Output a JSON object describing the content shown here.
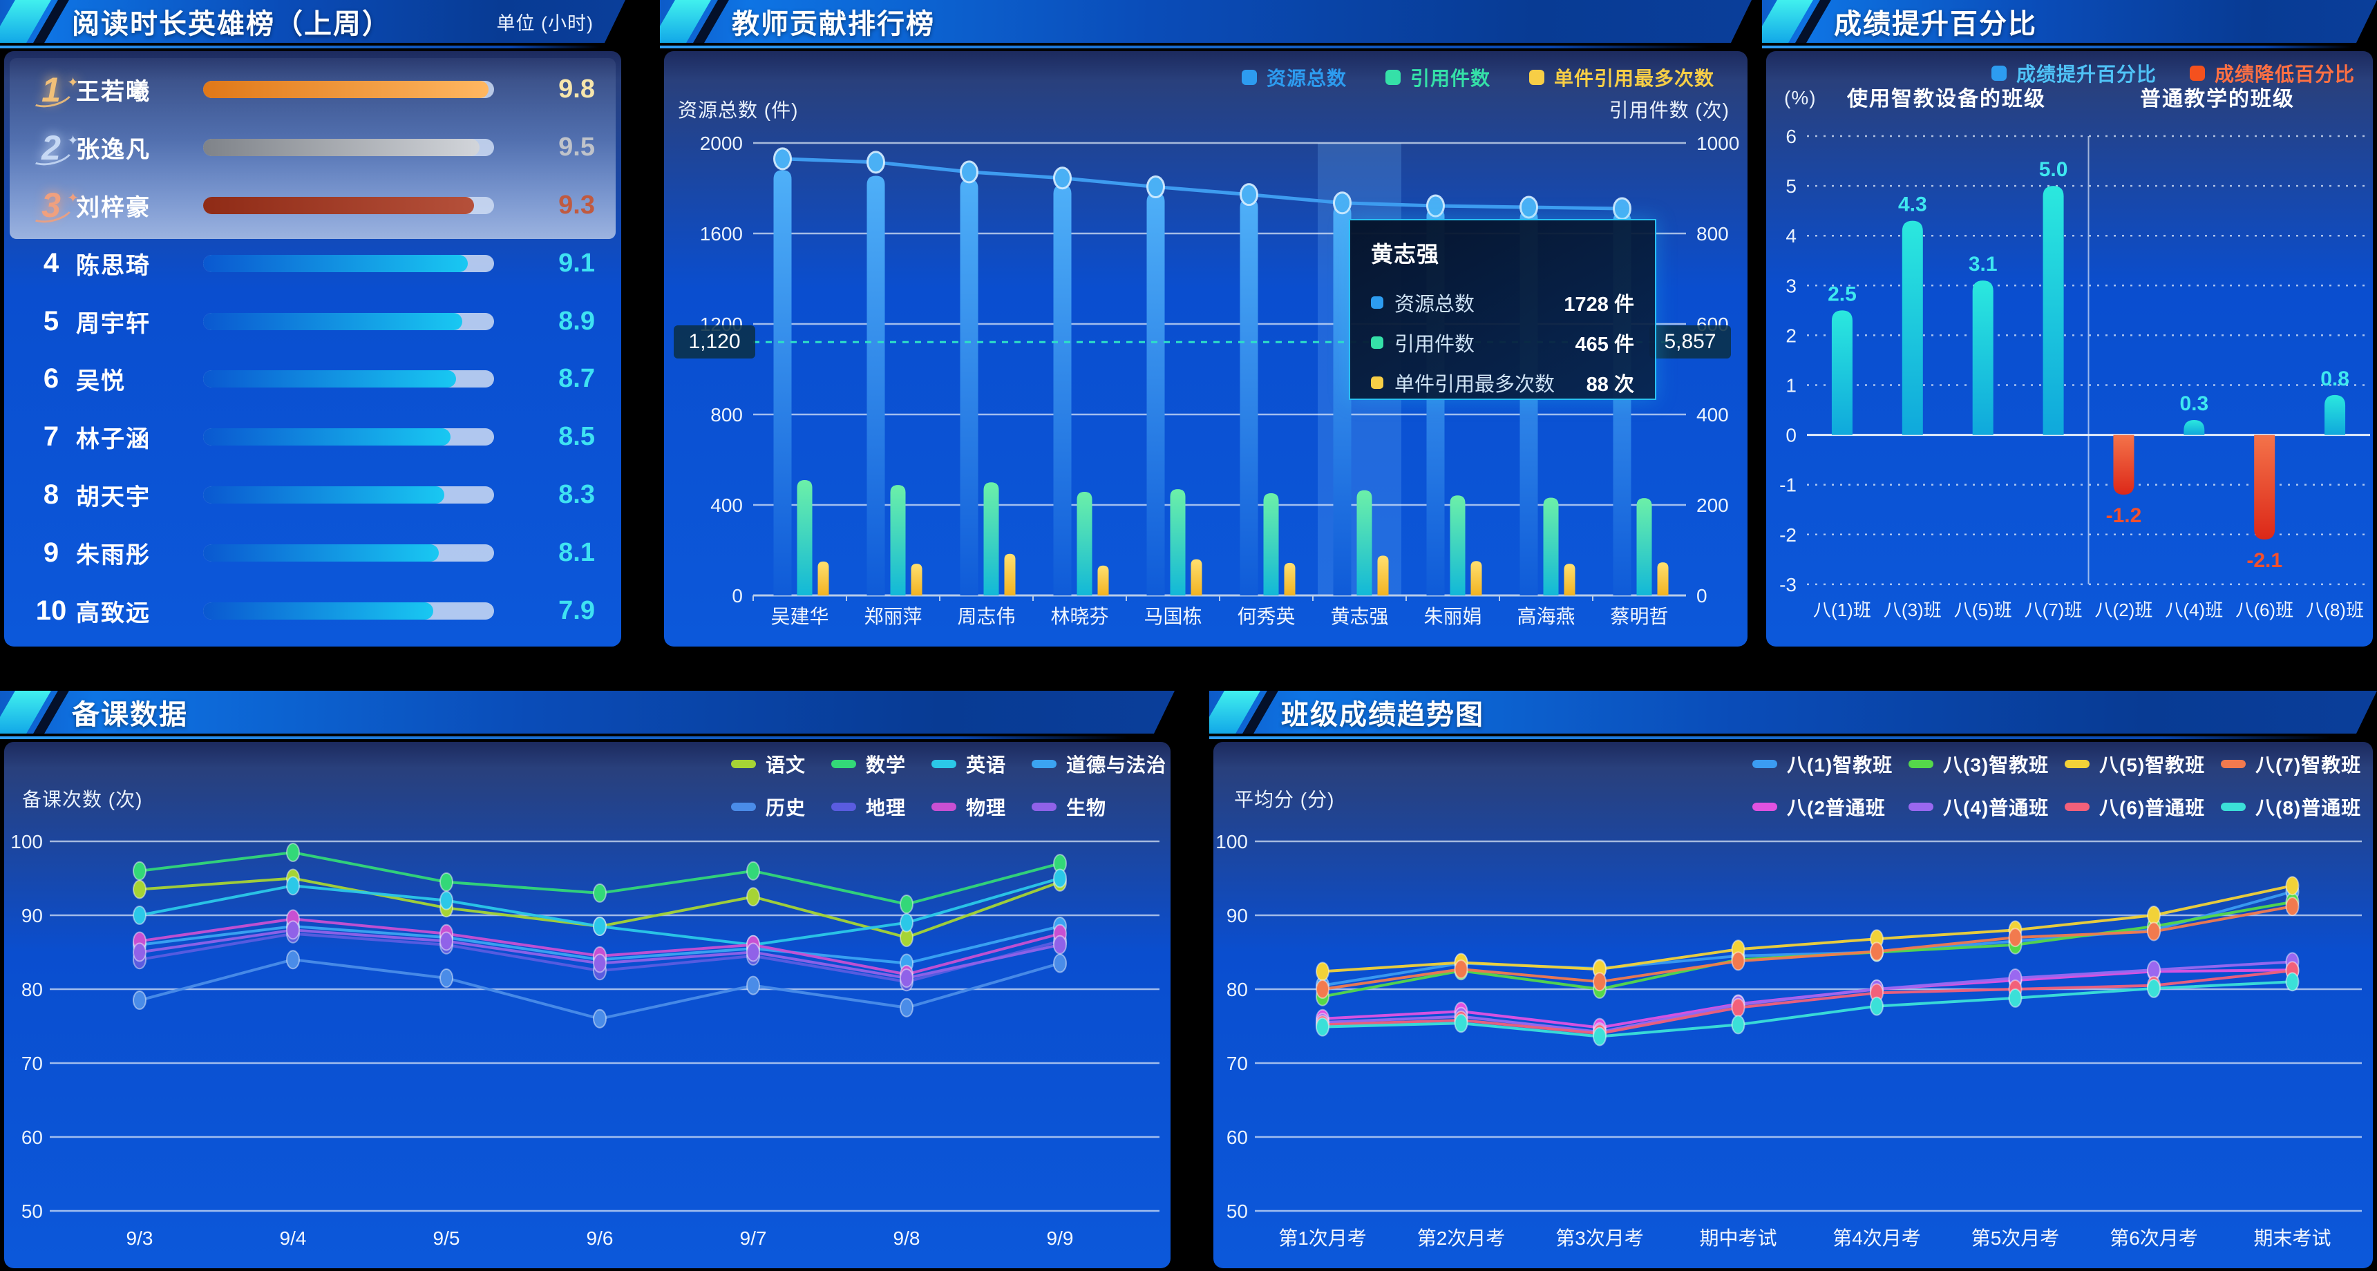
{
  "app": {
    "background": "#000000",
    "panel_blue": "#0b51d5",
    "header_gradient": [
      "#0e74e4",
      "#083b94"
    ],
    "accent_cyan": "#2fe0ee"
  },
  "panels": {
    "reading": {
      "title": "阅读时长英雄榜（上周）",
      "unit_label": "单位 (小时)"
    },
    "teacher": {
      "title": "教师贡献排行榜"
    },
    "improvement": {
      "title": "成绩提升百分比"
    },
    "prep": {
      "title": "备课数据"
    },
    "trend": {
      "title": "班级成绩趋势图"
    }
  },
  "chart_data": [
    {
      "id": "reading",
      "type": "bar",
      "title": "阅读时长英雄榜（上周）",
      "unit": "单位 (小时)",
      "xlim": [
        0,
        10
      ],
      "rows": [
        {
          "rank": 1,
          "name": "王若曦",
          "value": 9.8,
          "tier": "gold"
        },
        {
          "rank": 2,
          "name": "张逸凡",
          "value": 9.5,
          "tier": "silver"
        },
        {
          "rank": 3,
          "name": "刘梓豪",
          "value": 9.3,
          "tier": "bronze"
        },
        {
          "rank": 4,
          "name": "陈思琦",
          "value": 9.1,
          "tier": "normal"
        },
        {
          "rank": 5,
          "name": "周宇轩",
          "value": 8.9,
          "tier": "normal"
        },
        {
          "rank": 6,
          "name": "吴悦",
          "value": 8.7,
          "tier": "normal"
        },
        {
          "rank": 7,
          "name": "林子涵",
          "value": 8.5,
          "tier": "normal"
        },
        {
          "rank": 8,
          "name": "胡天宇",
          "value": 8.3,
          "tier": "normal"
        },
        {
          "rank": 9,
          "name": "朱雨彤",
          "value": 8.1,
          "tier": "normal"
        },
        {
          "rank": 10,
          "name": "高致远",
          "value": 7.9,
          "tier": "normal"
        }
      ],
      "tier_colors": {
        "gold": {
          "bar": [
            "#e07818",
            "#ffb761"
          ],
          "value": "#f7e6ac",
          "medal": "#f2c078"
        },
        "silver": {
          "bar": [
            "#7f8389",
            "#d2d5da"
          ],
          "value": "#bfc3ca",
          "medal": "#c6d8f4"
        },
        "bronze": {
          "bar": [
            "#8f2b16",
            "#b5503a"
          ],
          "value": "#c05a40",
          "medal": "#f0a07e"
        },
        "normal": {
          "bar": [
            "#0a58d0",
            "#19c8f2"
          ],
          "value": "#3fe2f2",
          "medal": "#ffffff"
        }
      }
    },
    {
      "id": "teacher",
      "type": "bar",
      "title": "教师贡献排行榜",
      "left_axis": {
        "name": "资源总数 (件)",
        "max": 2000,
        "ticks": [
          2000,
          1600,
          1200,
          800,
          400,
          0
        ]
      },
      "right_axis": {
        "name": "引用件数 (次)",
        "max": 1000,
        "ticks": [
          1000,
          800,
          600,
          400,
          200,
          0
        ]
      },
      "categories": [
        "吴建华",
        "郑丽萍",
        "周志伟",
        "林晓芬",
        "马国栋",
        "何秀英",
        "黄志强",
        "朱丽娟",
        "高海燕",
        "蔡明哲"
      ],
      "legend": [
        {
          "label": "资源总数",
          "color": "#2d9cf0"
        },
        {
          "label": "引用件数",
          "color": "#35e0a8"
        },
        {
          "label": "单件引用最多次数",
          "color": "#f7ce46"
        }
      ],
      "series": [
        {
          "name": "资源总数",
          "kind": "bar",
          "axis": "left",
          "colors": [
            "#4fb0f8",
            "#0f5bd8"
          ],
          "values": [
            1880,
            1855,
            1840,
            1815,
            1780,
            1755,
            1728,
            1715,
            1705,
            1695
          ]
        },
        {
          "name": "资源总数-趋势",
          "kind": "line",
          "axis": "left",
          "color": "#3e9cf0",
          "values": [
            1930,
            1915,
            1872,
            1845,
            1806,
            1772,
            1735,
            1722,
            1716,
            1710
          ]
        },
        {
          "name": "引用件数",
          "kind": "bar",
          "axis": "left",
          "colors": [
            "#6cf0a8",
            "#12b8d8"
          ],
          "values": [
            510,
            488,
            500,
            458,
            470,
            452,
            465,
            442,
            432,
            430
          ]
        },
        {
          "name": "单件引用最多次数",
          "kind": "bar",
          "axis": "right",
          "colors": [
            "#ffe070",
            "#f2b322"
          ],
          "values": [
            75,
            70,
            92,
            66,
            80,
            72,
            88,
            76,
            70,
            73
          ]
        }
      ],
      "highlight_category": "黄志强",
      "axis_pointer": {
        "left_label": "1,120",
        "right_label": "5,857",
        "left_value": 1120
      },
      "tooltip": {
        "title": "黄志强",
        "rows": [
          {
            "label": "资源总数",
            "value": "1728 件",
            "color": "#2d9cf0"
          },
          {
            "label": "引用件数",
            "value": "465 件",
            "color": "#35e0a8"
          },
          {
            "label": "单件引用最多次数",
            "value": "88 次",
            "color": "#f7ce46"
          }
        ]
      }
    },
    {
      "id": "improvement",
      "type": "bar",
      "title": "成绩提升百分比",
      "ylabel": "(%)",
      "yticks": [
        6,
        5,
        4,
        3,
        2,
        1,
        0,
        -1,
        -2,
        -3
      ],
      "legend": [
        {
          "label": "成绩提升百分比",
          "color": "#2d9cf0",
          "text_color": "#4fc3f7"
        },
        {
          "label": "成绩降低百分比",
          "color": "#f4511e",
          "text_color": "#ff7043"
        }
      ],
      "groups": [
        {
          "label": "使用智教设备的班级",
          "categories": [
            "八(1)班",
            "八(3)班",
            "八(5)班",
            "八(7)班"
          ],
          "values": [
            2.5,
            4.3,
            3.1,
            5.0
          ]
        },
        {
          "label": "普通教学的班级",
          "categories": [
            "八(2)班",
            "八(4)班",
            "八(6)班",
            "八(8)班"
          ],
          "values": [
            -1.2,
            0.3,
            -2.1,
            0.8
          ]
        }
      ],
      "positive_colors": [
        "#2be8de",
        "#0fa8dc"
      ],
      "negative_colors": [
        "#f4734a",
        "#dc2818"
      ],
      "positive_label_color": "#3fe8f0",
      "negative_label_color": "#f4502c"
    },
    {
      "id": "prep",
      "type": "line",
      "title": "备课数据",
      "ylabel": "备课次数 (次)",
      "ylim": [
        50,
        100
      ],
      "yticks": [
        100,
        90,
        80,
        70,
        60,
        50
      ],
      "x": [
        "9/3",
        "9/4",
        "9/5",
        "9/6",
        "9/7",
        "9/8",
        "9/9"
      ],
      "series": [
        {
          "name": "语文",
          "color": "#a6d435",
          "values": [
            93.5,
            95,
            91,
            88.5,
            92.5,
            87,
            94.5
          ]
        },
        {
          "name": "数学",
          "color": "#33d878",
          "values": [
            96,
            98.5,
            94.5,
            93,
            96,
            91.5,
            97
          ]
        },
        {
          "name": "英语",
          "color": "#2bc8e8",
          "values": [
            90,
            94,
            92,
            88.5,
            86,
            89,
            95
          ]
        },
        {
          "name": "道德与法治",
          "color": "#3ba4f2",
          "values": [
            86,
            88.5,
            87,
            84,
            85.5,
            83.5,
            88.5
          ]
        },
        {
          "name": "历史",
          "color": "#4a8ce8",
          "values": [
            78.5,
            84,
            81.5,
            76,
            80.5,
            77.5,
            83.5
          ]
        },
        {
          "name": "地理",
          "color": "#5a5ce0",
          "values": [
            84,
            87.5,
            86,
            82.5,
            84.5,
            81,
            86.5
          ]
        },
        {
          "name": "物理",
          "color": "#c850d2",
          "values": [
            86.5,
            89.5,
            87.5,
            84.5,
            86,
            82,
            87.5
          ]
        },
        {
          "name": "生物",
          "color": "#9062e8",
          "values": [
            85,
            88,
            86.5,
            83.5,
            85,
            81.5,
            86
          ]
        }
      ]
    },
    {
      "id": "trend",
      "type": "line",
      "title": "班级成绩趋势图",
      "ylabel": "平均分 (分)",
      "ylim": [
        50,
        100
      ],
      "yticks": [
        100,
        90,
        80,
        70,
        60,
        50
      ],
      "x": [
        "第1次月考",
        "第2次月考",
        "第3次月考",
        "期中考试",
        "第4次月考",
        "第5次月考",
        "第6次月考",
        "期末考试"
      ],
      "series": [
        {
          "name": "八(1)智教班",
          "color": "#3b9cf2",
          "values": [
            80.5,
            83.5,
            82.8,
            84.5,
            85,
            86.5,
            88,
            93.2
          ]
        },
        {
          "name": "八(3)智教班",
          "color": "#55d84a",
          "values": [
            79,
            82.5,
            80,
            84,
            85,
            86,
            88.5,
            91.8
          ]
        },
        {
          "name": "八(5)智教班",
          "color": "#f2d238",
          "values": [
            82.4,
            83.6,
            82.7,
            85.4,
            86.8,
            88,
            90,
            94
          ]
        },
        {
          "name": "八(7)智教班",
          "color": "#f27a4e",
          "values": [
            80,
            82.7,
            81,
            83.8,
            85.1,
            87,
            87.8,
            91.2
          ]
        },
        {
          "name": "八(2普通班",
          "color": "#e052e0",
          "values": [
            76,
            77,
            74.8,
            78,
            80,
            81.2,
            82.4,
            82.6
          ]
        },
        {
          "name": "八(4)普通班",
          "color": "#9a68f0",
          "values": [
            75.5,
            76.3,
            74.2,
            77.9,
            80,
            81.5,
            82.6,
            83.7
          ]
        },
        {
          "name": "八(6)普通班",
          "color": "#f2607a",
          "values": [
            75.2,
            75.8,
            74,
            77.5,
            79.5,
            80,
            80.5,
            82.5
          ]
        },
        {
          "name": "八(8)普通班",
          "color": "#3be0d8",
          "values": [
            74.9,
            75.4,
            73.6,
            75.2,
            77.7,
            78.8,
            80.1,
            81
          ]
        }
      ]
    }
  ]
}
